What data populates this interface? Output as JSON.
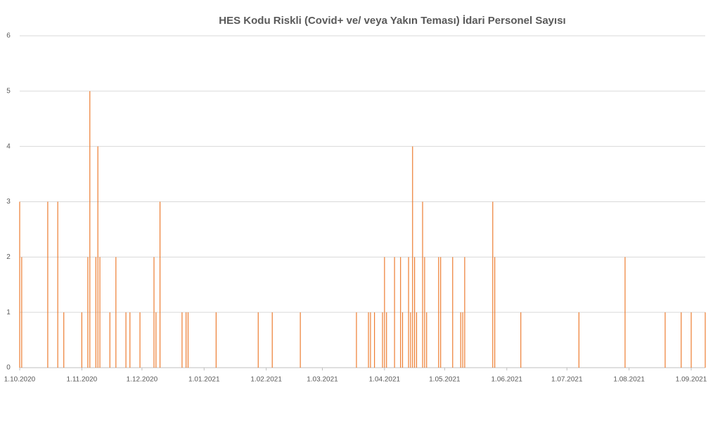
{
  "chart_data": {
    "type": "bar",
    "title": "HES Kodu Riskli (Covid+ ve/ veya Yakın Teması) İdari Personel Sayısı",
    "x": [
      "1.10.2020",
      "2.10.2020",
      "15.10.2020",
      "20.10.2020",
      "23.10.2020",
      "1.11.2020",
      "4.11.2020",
      "5.11.2020",
      "8.11.2020",
      "9.11.2020",
      "10.11.2020",
      "15.11.2020",
      "18.11.2020",
      "23.11.2020",
      "25.11.2020",
      "30.11.2020",
      "7.12.2020",
      "8.12.2020",
      "10.12.2020",
      "21.12.2020",
      "23.12.2020",
      "24.12.2020",
      "7.01.2021",
      "28.01.2021",
      "4.02.2021",
      "18.02.2021",
      "18.03.2021",
      "24.03.2021",
      "25.03.2021",
      "27.03.2021",
      "31.03.2021",
      "1.04.2021",
      "2.04.2021",
      "6.04.2021",
      "9.04.2021",
      "10.04.2021",
      "13.04.2021",
      "14.04.2021",
      "15.04.2021",
      "16.04.2021",
      "17.04.2021",
      "20.04.2021",
      "21.04.2021",
      "22.04.2021",
      "28.04.2021",
      "29.04.2021",
      "5.05.2021",
      "9.05.2021",
      "10.05.2021",
      "11.05.2021",
      "25.05.2021",
      "26.05.2021",
      "8.06.2021",
      "7.07.2021",
      "30.07.2021",
      "19.08.2021",
      "27.08.2021",
      "1.09.2021",
      "8.09.2021"
    ],
    "values": [
      3,
      2,
      3,
      3,
      1,
      1,
      2,
      5,
      2,
      4,
      2,
      1,
      2,
      1,
      1,
      1,
      2,
      1,
      3,
      1,
      1,
      1,
      1,
      1,
      1,
      1,
      1,
      1,
      1,
      1,
      1,
      2,
      1,
      2,
      2,
      1,
      2,
      1,
      4,
      2,
      1,
      3,
      2,
      1,
      2,
      2,
      2,
      1,
      1,
      2,
      3,
      2,
      1,
      1,
      2,
      1,
      1,
      1,
      1
    ],
    "color": "#ed7d31",
    "xlim": [
      "1.10.2020",
      "8.09.2021"
    ],
    "xticks": [
      "1.10.2020",
      "1.11.2020",
      "1.12.2020",
      "1.01.2021",
      "1.02.2021",
      "1.03.2021",
      "1.04.2021",
      "1.05.2021",
      "1.06.2021",
      "1.07.2021",
      "1.08.2021",
      "1.09.2021"
    ],
    "ylim": [
      0,
      6
    ],
    "yticks": [
      0,
      1,
      2,
      3,
      4,
      5,
      6
    ],
    "grid": true
  }
}
